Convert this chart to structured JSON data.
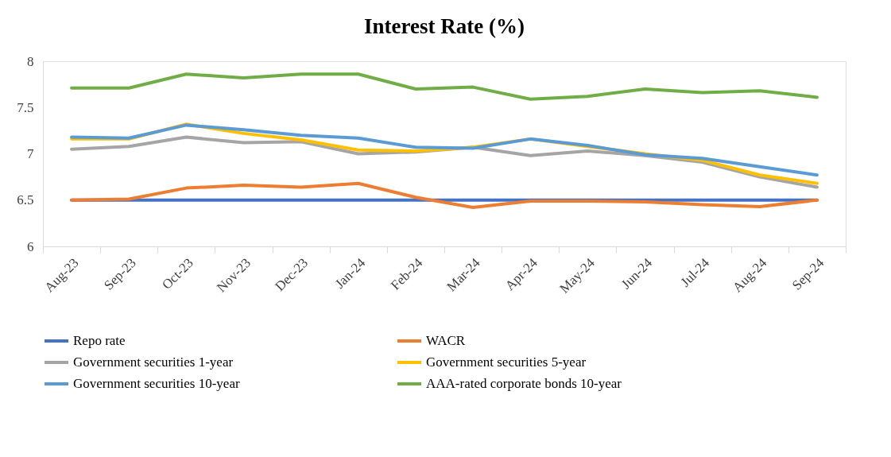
{
  "chart_data": {
    "type": "line",
    "title": "Interest Rate (%)",
    "categories": [
      "Aug-23",
      "Sep-23",
      "Oct-23",
      "Nov-23",
      "Dec-23",
      "Jan-24",
      "Feb-24",
      "Mar-24",
      "Apr-24",
      "May-24",
      "Jun-24",
      "Jul-24",
      "Aug-24",
      "Sep-24"
    ],
    "series": [
      {
        "name": "Repo rate",
        "color": "#4472c4",
        "values": [
          6.5,
          6.5,
          6.5,
          6.5,
          6.5,
          6.5,
          6.5,
          6.5,
          6.5,
          6.5,
          6.5,
          6.5,
          6.5,
          6.5
        ]
      },
      {
        "name": "WACR",
        "color": "#ed7d31",
        "values": [
          6.5,
          6.51,
          6.63,
          6.66,
          6.64,
          6.68,
          6.53,
          6.42,
          6.49,
          6.49,
          6.48,
          6.45,
          6.43,
          6.5
        ]
      },
      {
        "name": "Government securities 1-year",
        "color": "#a5a5a5",
        "values": [
          7.05,
          7.08,
          7.18,
          7.12,
          7.13,
          7.0,
          7.02,
          7.07,
          6.98,
          7.03,
          6.98,
          6.91,
          6.75,
          6.64
        ]
      },
      {
        "name": "Government securities 5-year",
        "color": "#ffc000",
        "values": [
          7.16,
          7.16,
          7.32,
          7.22,
          7.15,
          7.04,
          7.03,
          7.07,
          7.16,
          7.08,
          7.0,
          6.93,
          6.77,
          6.68
        ]
      },
      {
        "name": "Government securities 10-year",
        "color": "#5b9bd5",
        "values": [
          7.18,
          7.17,
          7.31,
          7.26,
          7.2,
          7.17,
          7.07,
          7.06,
          7.16,
          7.09,
          6.99,
          6.95,
          6.86,
          6.77
        ]
      },
      {
        "name": "AAA-rated corporate bonds 10-year",
        "color": "#70ad47",
        "values": [
          7.71,
          7.71,
          7.86,
          7.82,
          7.86,
          7.86,
          7.7,
          7.72,
          7.59,
          7.62,
          7.7,
          7.66,
          7.68,
          7.61
        ]
      }
    ],
    "ylim": [
      6,
      8
    ],
    "yticks": [
      6,
      6.5,
      7,
      7.5,
      8
    ],
    "grid": false,
    "legend": "bottom",
    "marker": "none",
    "line_style": "solid"
  }
}
